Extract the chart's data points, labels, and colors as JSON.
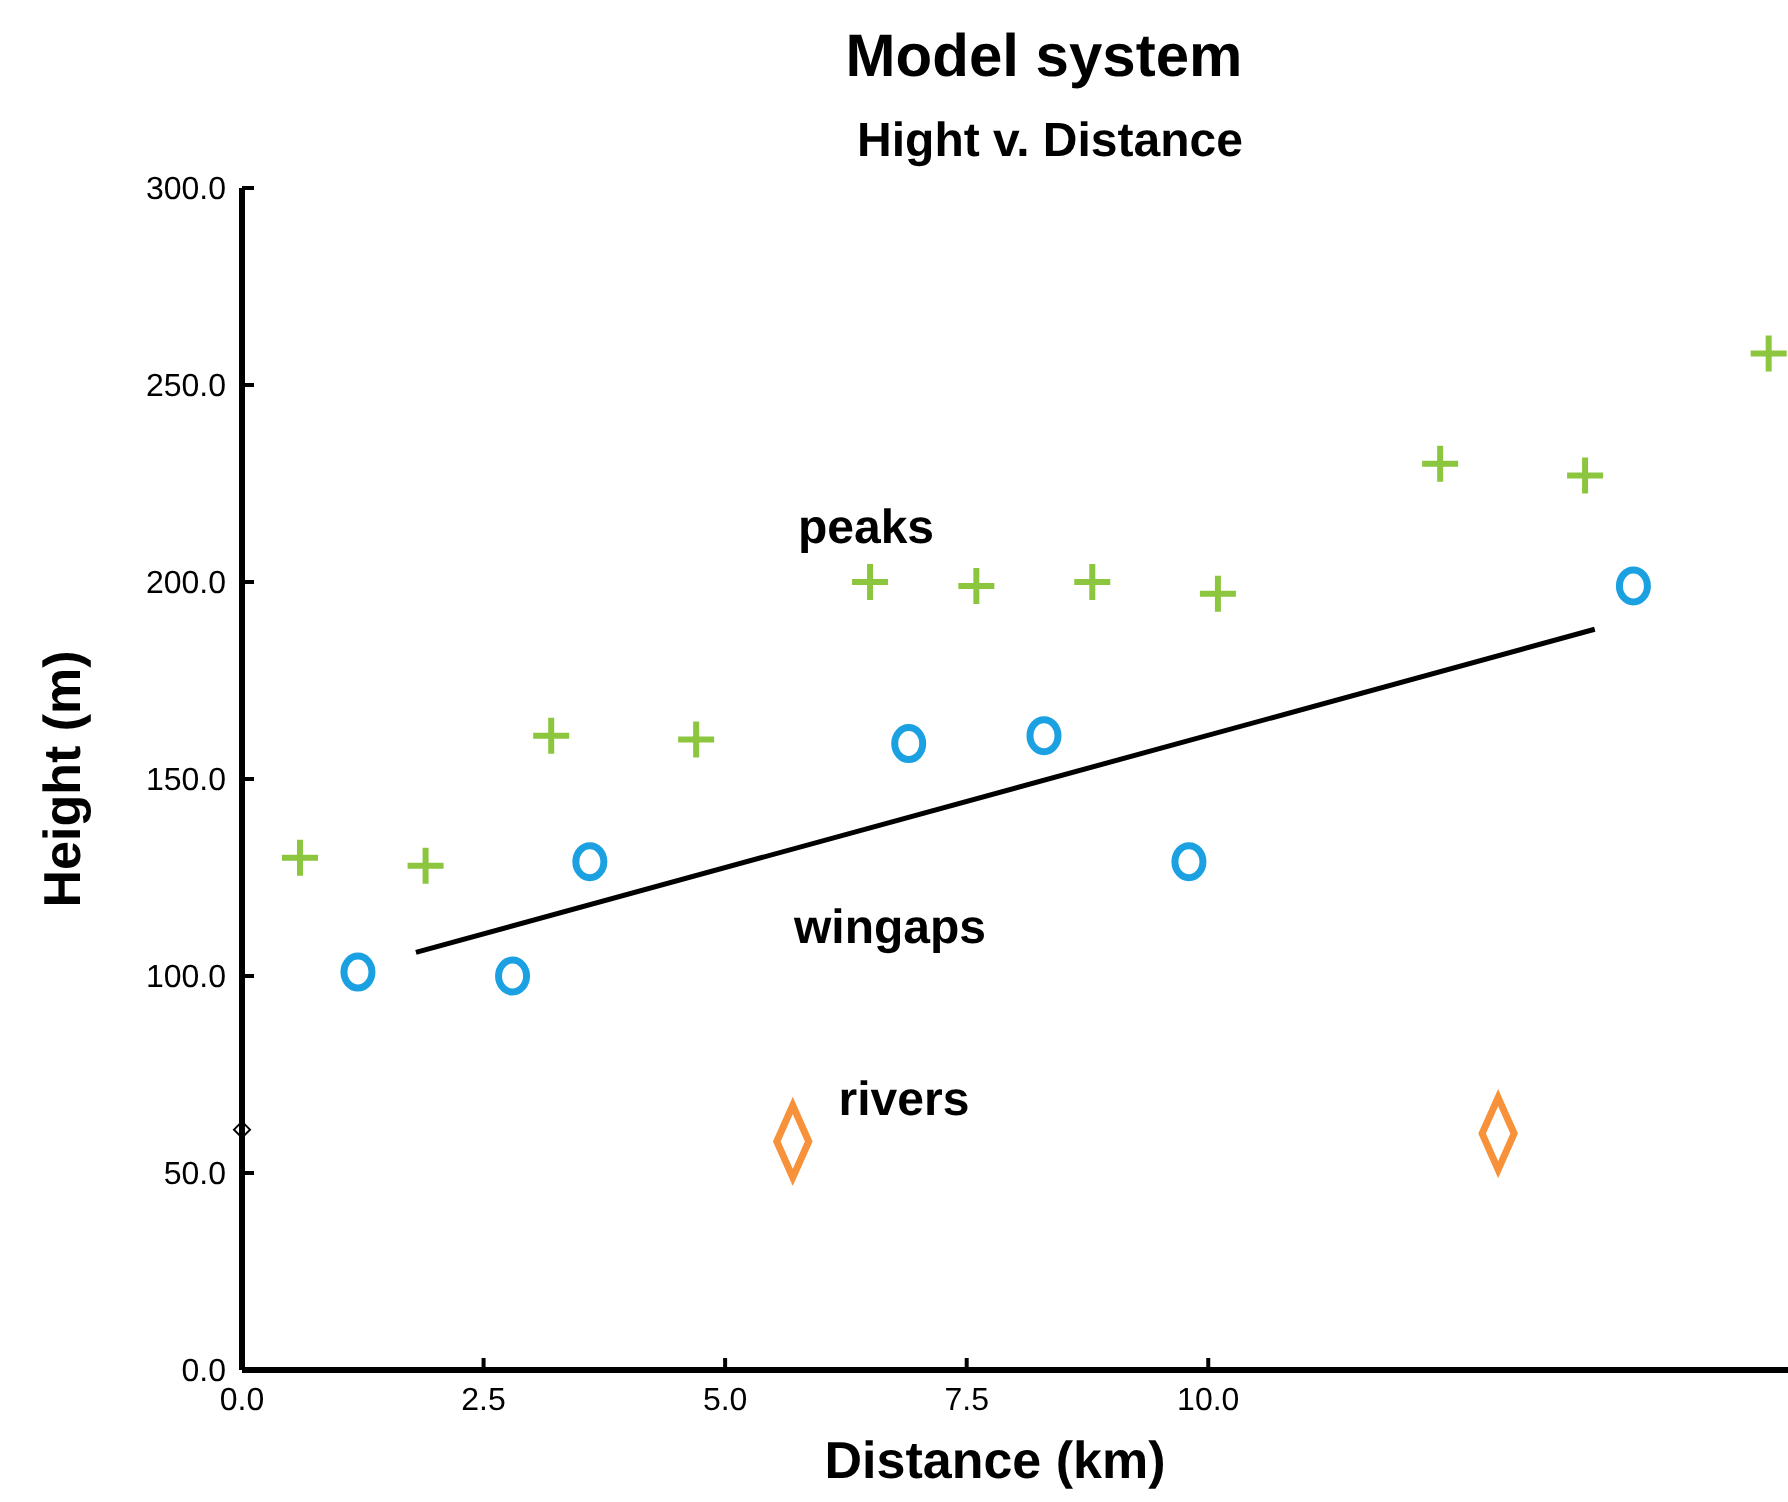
{
  "chart_data": {
    "type": "scatter",
    "title": "Model system",
    "subtitle": "Hight v. Distance",
    "xlabel": "Distance (km)",
    "ylabel": "Height (m)",
    "xlim": [
      0,
      16
    ],
    "xticks": [
      {
        "value": 0,
        "label": "0.0"
      },
      {
        "value": 2.5,
        "label": "2.5"
      },
      {
        "value": 5,
        "label": "5.0"
      },
      {
        "value": 7.5,
        "label": "7.5"
      },
      {
        "value": 10,
        "label": "10.0"
      }
    ],
    "ylim": [
      0,
      300
    ],
    "yticks": [
      {
        "value": 0,
        "label": "0.0"
      },
      {
        "value": 50,
        "label": "50.0"
      },
      {
        "value": 100,
        "label": "100.0"
      },
      {
        "value": 150,
        "label": "150.0"
      },
      {
        "value": 200,
        "label": "200.0"
      },
      {
        "value": 250,
        "label": "250.0"
      },
      {
        "value": 300,
        "label": "300.0"
      }
    ],
    "grid": false,
    "series": [
      {
        "marker": "cross",
        "color": "#8cc63f",
        "x": [
          0.6,
          1.9,
          3.2,
          4.7,
          6.5,
          7.6,
          8.8,
          10.1,
          12.4,
          13.9,
          15.8
        ],
        "values": [
          130,
          128,
          161,
          160,
          200,
          199,
          200,
          197,
          230,
          227,
          258
        ]
      },
      {
        "marker": "circle",
        "color": "#1ba1e2",
        "x": [
          1.2,
          2.8,
          3.6,
          6.9,
          8.3,
          9.8,
          14.4
        ],
        "values": [
          101,
          100,
          129,
          159,
          161,
          129,
          199
        ]
      },
      {
        "type": "line",
        "marker": "none",
        "color": "#000000",
        "x": [
          1.8,
          14.0
        ],
        "values": [
          106,
          188
        ]
      },
      {
        "marker": "diamond",
        "color": "#f7923a",
        "x": [
          5.7,
          13.0
        ],
        "values": [
          58,
          60
        ]
      },
      {
        "marker": "diamond",
        "color": "#000000",
        "x": [
          0
        ],
        "values": [
          61
        ]
      }
    ],
    "annotations": [
      "peaks",
      "wingaps",
      "rivers"
    ]
  }
}
